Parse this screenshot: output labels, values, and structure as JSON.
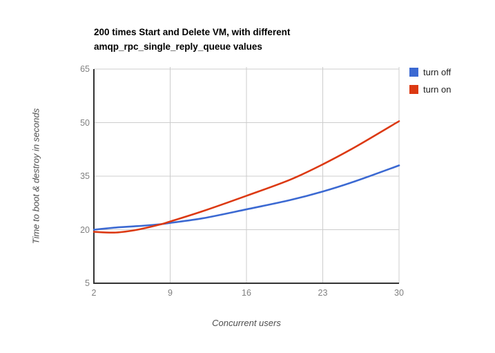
{
  "chart_data": {
    "type": "line",
    "title": "200 times Start and Delete VM, with different amqp_rpc_single_reply_queue values",
    "title_lines": [
      "200 times Start and Delete VM, with different",
      "amqp_rpc_single_reply_queue values"
    ],
    "xlabel": "Concurrent users",
    "ylabel": "Time to boot & destroy in seconds",
    "xlim": [
      2,
      30
    ],
    "ylim": [
      5,
      65
    ],
    "x_ticks": [
      2,
      9,
      16,
      23,
      30
    ],
    "y_ticks": [
      5,
      20,
      35,
      50,
      65
    ],
    "grid": true,
    "legend_position": "right",
    "series": [
      {
        "name": "turn off",
        "color": "#3b69d2",
        "points": [
          [
            2,
            20.0
          ],
          [
            4,
            20.6
          ],
          [
            6,
            21.0
          ],
          [
            8,
            21.5
          ],
          [
            9,
            21.9
          ],
          [
            12,
            23.2
          ],
          [
            16,
            25.7
          ],
          [
            20,
            28.3
          ],
          [
            23,
            30.7
          ],
          [
            26,
            33.6
          ],
          [
            30,
            38.0
          ]
        ]
      },
      {
        "name": "turn on",
        "color": "#dc3912",
        "points": [
          [
            2,
            19.4
          ],
          [
            4,
            19.2
          ],
          [
            6,
            20.0
          ],
          [
            8,
            21.4
          ],
          [
            9,
            22.3
          ],
          [
            12,
            25.2
          ],
          [
            16,
            29.5
          ],
          [
            20,
            34.0
          ],
          [
            23,
            38.3
          ],
          [
            26,
            43.2
          ],
          [
            30,
            50.4
          ]
        ]
      }
    ],
    "colors": {
      "background": "#ffffff",
      "gridline": "#cccccc",
      "axis_line": "#333333",
      "tick_label": "#808080",
      "axis_title": "#4d4d4d",
      "title": "#000000",
      "legend_text": "#222222"
    }
  }
}
